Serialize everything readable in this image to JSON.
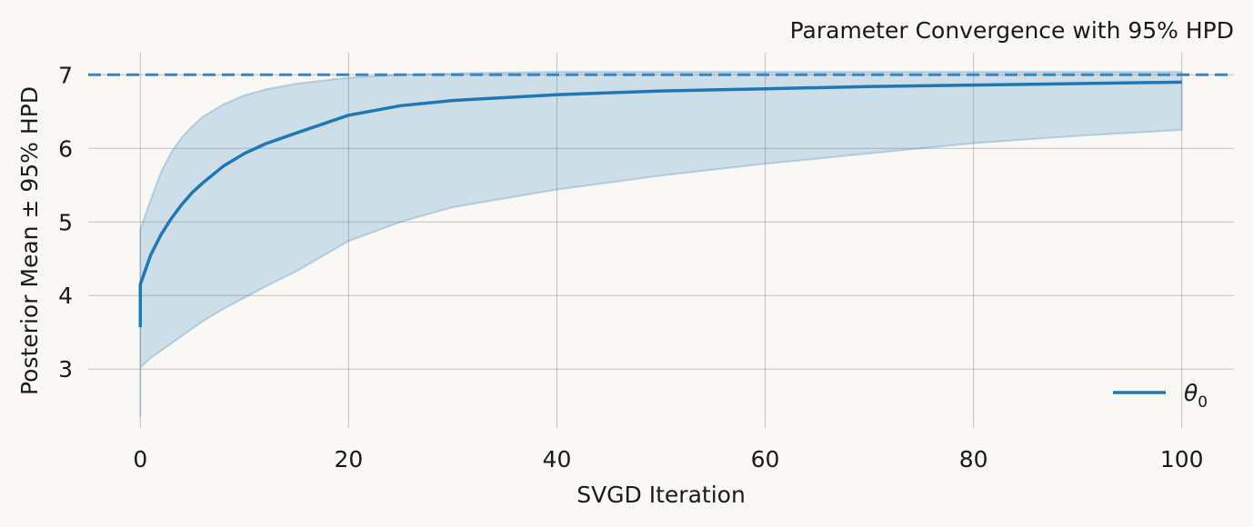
{
  "chart_data": {
    "type": "line",
    "title": "Parameter Convergence with 95% HPD",
    "xlabel": "SVGD Iteration",
    "ylabel": "Posterior Mean ± 95% HPD",
    "xlim": [
      -5,
      105
    ],
    "ylim": [
      2.2,
      7.3
    ],
    "xticks": [
      0,
      20,
      40,
      60,
      80,
      100
    ],
    "yticks": [
      3,
      4,
      5,
      6,
      7
    ],
    "grid": true,
    "legend": {
      "position": "bottom-right",
      "entries": [
        {
          "symbol": "θ",
          "subscript": "0",
          "color": "#1f77b4"
        }
      ]
    },
    "reference_line": {
      "y": 7.0,
      "style": "dashed",
      "color": "#3a85c0"
    },
    "series": [
      {
        "name": "θ_0",
        "color": "#1f77b4",
        "x": [
          0,
          0,
          1,
          2,
          3,
          4,
          5,
          6,
          8,
          10,
          12,
          15,
          20,
          25,
          30,
          40,
          50,
          60,
          70,
          80,
          90,
          100
        ],
        "mean": [
          3.57,
          4.15,
          4.55,
          4.83,
          5.05,
          5.24,
          5.4,
          5.53,
          5.76,
          5.93,
          6.06,
          6.21,
          6.45,
          6.58,
          6.65,
          6.73,
          6.78,
          6.81,
          6.84,
          6.86,
          6.88,
          6.9
        ],
        "upper": [
          4.8,
          4.9,
          5.3,
          5.68,
          5.95,
          6.15,
          6.3,
          6.43,
          6.6,
          6.72,
          6.8,
          6.88,
          6.96,
          7.0,
          7.02,
          7.04,
          7.04,
          7.04,
          7.04,
          7.04,
          7.04,
          7.04
        ],
        "lower": [
          2.35,
          3.02,
          3.15,
          3.25,
          3.35,
          3.45,
          3.55,
          3.65,
          3.82,
          3.97,
          4.12,
          4.33,
          4.74,
          5.0,
          5.2,
          5.44,
          5.63,
          5.79,
          5.93,
          6.07,
          6.17,
          6.25
        ]
      }
    ]
  }
}
